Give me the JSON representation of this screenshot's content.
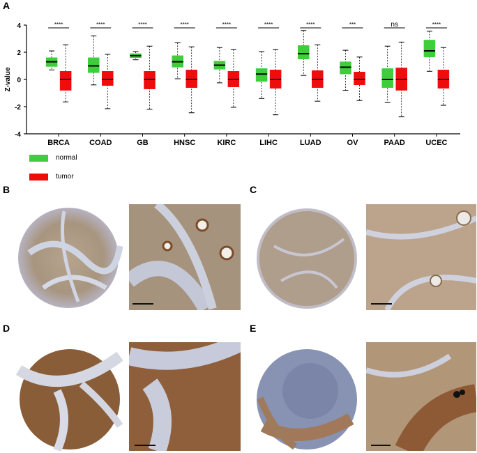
{
  "panels": {
    "a": "A",
    "b": "B",
    "c": "C",
    "d": "D",
    "e": "E"
  },
  "colors": {
    "normal": "#3fcd3c",
    "tumor": "#ee0d0d",
    "stain_brown": "#a9805a",
    "stain_blue": "#8f9dc0"
  },
  "chart_data": {
    "type": "box",
    "ylabel": "Z-value",
    "ylim": [
      -4,
      4
    ],
    "yticks": [
      4,
      2,
      0,
      -2,
      -4
    ],
    "categories": [
      "BRCA",
      "COAD",
      "GB",
      "HNSC",
      "KIRC",
      "LIHC",
      "LUAD",
      "OV",
      "PAAD",
      "UCEC"
    ],
    "significance": [
      "****",
      "****",
      "****",
      "****",
      "****",
      "****",
      "****",
      "***",
      "ns",
      "****"
    ],
    "legend": [
      {
        "key": "normal",
        "label": "normal"
      },
      {
        "key": "tumor",
        "label": "tumor"
      }
    ],
    "series": [
      {
        "name": "normal",
        "boxes": [
          {
            "min": 0.7,
            "q1": 0.95,
            "median": 1.3,
            "q3": 1.6,
            "max": 2.1
          },
          {
            "min": -0.4,
            "q1": 0.5,
            "median": 1.0,
            "q3": 1.6,
            "max": 3.2
          },
          {
            "min": 1.45,
            "q1": 1.6,
            "median": 1.75,
            "q3": 1.9,
            "max": 2.05
          },
          {
            "min": 0.05,
            "q1": 0.9,
            "median": 1.3,
            "q3": 1.75,
            "max": 2.7
          },
          {
            "min": -0.25,
            "q1": 0.75,
            "median": 1.05,
            "q3": 1.35,
            "max": 2.35
          },
          {
            "min": -1.4,
            "q1": -0.15,
            "median": 0.4,
            "q3": 0.8,
            "max": 2.05
          },
          {
            "min": 0.3,
            "q1": 1.5,
            "median": 1.9,
            "q3": 2.5,
            "max": 3.6
          },
          {
            "min": -0.8,
            "q1": 0.4,
            "median": 0.9,
            "q3": 1.3,
            "max": 2.15
          },
          {
            "min": -1.7,
            "q1": -0.6,
            "median": 0.0,
            "q3": 0.8,
            "max": 2.45
          },
          {
            "min": 0.6,
            "q1": 1.65,
            "median": 2.1,
            "q3": 2.9,
            "max": 3.55
          }
        ]
      },
      {
        "name": "tumor",
        "boxes": [
          {
            "min": -1.65,
            "q1": -0.8,
            "median": 0.0,
            "q3": 0.6,
            "max": 2.55
          },
          {
            "min": -2.15,
            "q1": -0.45,
            "median": 0.0,
            "q3": 0.6,
            "max": 1.85
          },
          {
            "min": -2.2,
            "q1": -0.7,
            "median": 0.0,
            "q3": 0.6,
            "max": 2.45
          },
          {
            "min": -2.45,
            "q1": -0.6,
            "median": 0.0,
            "q3": 0.7,
            "max": 2.4
          },
          {
            "min": -2.05,
            "q1": -0.55,
            "median": 0.0,
            "q3": 0.6,
            "max": 2.2
          },
          {
            "min": -2.6,
            "q1": -0.65,
            "median": 0.0,
            "q3": 0.7,
            "max": 2.2
          },
          {
            "min": -1.6,
            "q1": -0.6,
            "median": 0.0,
            "q3": 0.65,
            "max": 2.55
          },
          {
            "min": -1.55,
            "q1": -0.4,
            "median": 0.0,
            "q3": 0.55,
            "max": 1.65
          },
          {
            "min": -2.75,
            "q1": -0.8,
            "median": 0.0,
            "q3": 0.85,
            "max": 2.75
          },
          {
            "min": -1.9,
            "q1": -0.65,
            "median": 0.0,
            "q3": 0.7,
            "max": 2.35
          }
        ]
      }
    ]
  }
}
